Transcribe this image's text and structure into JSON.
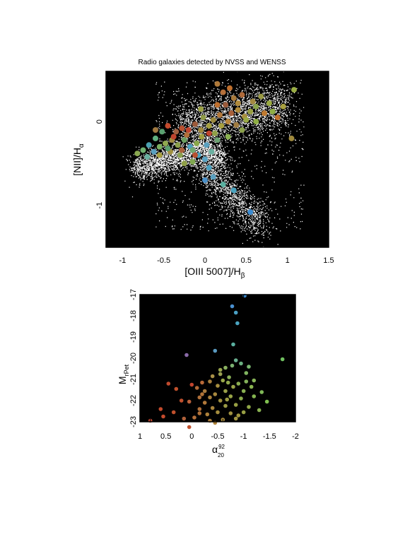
{
  "chart_data": [
    {
      "type": "scatter",
      "title": "Radio galaxies detected by NVSS and WENSS",
      "xlabel": {
        "open": "[OIII 5007]/H",
        "sub": "β"
      },
      "ylabel": {
        "open": "[NII]/H",
        "sub": "α"
      },
      "xlim": [
        -1.2,
        1.5
      ],
      "ylim": [
        -1.5,
        0.6
      ],
      "x_ticks": [
        -1,
        -0.5,
        0,
        0.5,
        1,
        1.5
      ],
      "y_ticks": [
        -1,
        0
      ],
      "background": "#000000",
      "cloud_color": "#ffffff",
      "series": [
        {
          "values": [
            [
              0.15,
              0.45,
              "#b07a3a"
            ],
            [
              0.22,
              0.35,
              "#b5703a"
            ],
            [
              0.35,
              0.28,
              "#a87a3c"
            ],
            [
              0.45,
              0.32,
              "#b06a3a"
            ],
            [
              0.58,
              0.24,
              "#a38a40"
            ],
            [
              0.68,
              0.3,
              "#9a9a44"
            ],
            [
              0.78,
              0.22,
              "#9aaa40"
            ],
            [
              0.82,
              0.12,
              "#8fae44"
            ],
            [
              0.88,
              0.05,
              "#c0702e"
            ],
            [
              0.72,
              0.1,
              "#c07a30"
            ],
            [
              0.62,
              0.18,
              "#8aa44a"
            ],
            [
              0.55,
              0.12,
              "#99a040"
            ],
            [
              0.48,
              0.06,
              "#a8903e"
            ],
            [
              0.4,
              0.14,
              "#b08a3a"
            ],
            [
              0.32,
              0.1,
              "#a8603a"
            ],
            [
              0.25,
              0.2,
              "#9a5a3a"
            ],
            [
              0.18,
              0.08,
              "#b4783a"
            ],
            [
              0.1,
              0.02,
              "#9c8a3e"
            ],
            [
              0.05,
              -0.05,
              "#a6a040"
            ],
            [
              -0.02,
              0.05,
              "#8f9a48"
            ],
            [
              -0.12,
              -0.03,
              "#9c5a3a"
            ],
            [
              -0.2,
              -0.1,
              "#c0442e"
            ],
            [
              -0.28,
              -0.08,
              "#b85030"
            ],
            [
              -0.35,
              -0.12,
              "#a06040"
            ],
            [
              -0.45,
              -0.05,
              "#c44a2c"
            ],
            [
              -0.52,
              -0.12,
              "#5aa070"
            ],
            [
              -0.6,
              -0.2,
              "#60b080"
            ],
            [
              -0.68,
              -0.28,
              "#4aa0b0"
            ],
            [
              -0.75,
              -0.34,
              "#70b070"
            ],
            [
              -0.62,
              -0.36,
              "#5aa0c0"
            ],
            [
              -0.55,
              -0.3,
              "#7ab060"
            ],
            [
              -0.48,
              -0.26,
              "#90a850"
            ],
            [
              -0.4,
              -0.22,
              "#a08c40"
            ],
            [
              -0.33,
              -0.28,
              "#8aa04a"
            ],
            [
              -0.25,
              -0.22,
              "#6aa060"
            ],
            [
              -0.18,
              -0.3,
              "#4aa0c0"
            ],
            [
              -0.1,
              -0.26,
              "#8aa84a"
            ],
            [
              -0.04,
              -0.18,
              "#a0a040"
            ],
            [
              0.02,
              -0.28,
              "#5aa0c0"
            ],
            [
              0.08,
              -0.36,
              "#6ab0a0"
            ],
            [
              0.0,
              -0.45,
              "#5aa4c4"
            ],
            [
              -0.08,
              -0.4,
              "#4aa0c0"
            ],
            [
              -0.15,
              -0.34,
              "#70a870"
            ],
            [
              -0.3,
              -0.4,
              "#8aa050"
            ],
            [
              -0.42,
              -0.36,
              "#a09040"
            ],
            [
              -0.38,
              -0.18,
              "#c0442e"
            ],
            [
              -0.22,
              -0.16,
              "#b0703a"
            ],
            [
              -0.05,
              -0.1,
              "#a0883e"
            ],
            [
              0.12,
              -0.14,
              "#8fa048"
            ],
            [
              0.2,
              -0.05,
              "#a8a040"
            ],
            [
              0.28,
              0.0,
              "#b8843a"
            ],
            [
              0.38,
              -0.04,
              "#a07c40"
            ],
            [
              0.5,
              0.02,
              "#9aaa44"
            ],
            [
              0.15,
              -0.22,
              "#6aa070"
            ],
            [
              0.28,
              -0.18,
              "#8ab050"
            ],
            [
              0.05,
              -0.55,
              "#4aa0c0"
            ],
            [
              0.1,
              -0.66,
              "#5aa0c0"
            ],
            [
              0.22,
              -0.75,
              "#5ab0a0"
            ],
            [
              0.35,
              -0.82,
              "#4aa4c0"
            ],
            [
              0.55,
              -1.08,
              "#3a8ad0"
            ],
            [
              0.0,
              -0.7,
              "#4a90c8"
            ],
            [
              -0.15,
              -0.48,
              "#80a850"
            ],
            [
              -0.25,
              -0.5,
              "#90a048"
            ],
            [
              -0.55,
              -0.4,
              "#a8a040"
            ],
            [
              -0.7,
              -0.42,
              "#6ab0a0"
            ],
            [
              1.08,
              0.38,
              "#9aae44"
            ],
            [
              1.05,
              -0.2,
              "#a08a3c"
            ],
            [
              0.95,
              0.18,
              "#a8a040"
            ],
            [
              0.15,
              0.2,
              "#c0702e"
            ],
            [
              -0.05,
              0.15,
              "#9aa044"
            ],
            [
              0.4,
              0.22,
              "#b08a3a"
            ],
            [
              0.62,
              0.0,
              "#8fae44"
            ],
            [
              -0.6,
              -0.1,
              "#a07840"
            ],
            [
              -0.82,
              -0.38,
              "#8aa850"
            ],
            [
              0.3,
              0.4,
              "#c0702e"
            ],
            [
              -0.28,
              -0.34,
              "#a8603a"
            ],
            [
              -0.12,
              -0.4,
              "#b85030"
            ],
            [
              0.45,
              -0.1,
              "#8aa04a"
            ],
            [
              0.05,
              -0.14,
              "#c0442e"
            ],
            [
              -0.45,
              -0.32,
              "#5aa070"
            ]
          ]
        }
      ]
    },
    {
      "type": "scatter",
      "xlabel": {
        "open": "α",
        "sup": "92",
        "sub": "20"
      },
      "ylabel": {
        "open": "M",
        "sub": "rPet"
      },
      "xlim": [
        1,
        -2
      ],
      "ylim": [
        -23,
        -17
      ],
      "x_ticks": [
        1,
        0.5,
        0,
        -0.5,
        -1,
        -1.5,
        -2
      ],
      "x_tick_labels": [
        "1",
        "0.5",
        "0",
        "-0.5",
        "-1",
        "-1.5",
        "-2"
      ],
      "y_ticks": [
        -23,
        -22,
        -21,
        -20,
        -19,
        -18,
        -17
      ],
      "y_tick_labels": [
        "-23",
        "-22",
        "-21",
        "-20",
        "-19",
        "-18",
        "-17"
      ],
      "background": "#000000",
      "series": [
        {
          "values": [
            [
              -1.02,
              -17.05,
              "#3a8ad0"
            ],
            [
              -0.78,
              -17.55,
              "#4a90d0"
            ],
            [
              -0.85,
              -17.85,
              "#4aa0c4"
            ],
            [
              -0.88,
              -18.35,
              "#4aa4c0"
            ],
            [
              -0.8,
              -19.35,
              "#5ab0a0"
            ],
            [
              -0.45,
              -19.65,
              "#5a9ac0"
            ],
            [
              -1.75,
              -20.05,
              "#70c060"
            ],
            [
              0.1,
              -19.85,
              "#8a6aa8"
            ],
            [
              -0.85,
              -20.1,
              "#6ab090"
            ],
            [
              -0.78,
              -20.35,
              "#7ab070"
            ],
            [
              -0.65,
              -20.45,
              "#8ab060"
            ],
            [
              -0.95,
              -20.25,
              "#6ab080"
            ],
            [
              -1.1,
              -20.4,
              "#7ab870"
            ],
            [
              -0.55,
              -20.75,
              "#9aa050"
            ],
            [
              -0.4,
              -20.85,
              "#a89048"
            ],
            [
              -1.05,
              -20.7,
              "#80b460"
            ],
            [
              -0.72,
              -20.9,
              "#8ab058"
            ],
            [
              -0.6,
              -21.05,
              "#9aa84a"
            ],
            [
              -0.35,
              -21.1,
              "#a8803e"
            ],
            [
              -0.2,
              -21.15,
              "#b86a38"
            ],
            [
              -1.2,
              -21.05,
              "#88b458"
            ],
            [
              -0.9,
              -21.2,
              "#8aac50"
            ],
            [
              -0.8,
              -21.35,
              "#9aa448"
            ],
            [
              -0.5,
              -21.3,
              "#a89040"
            ],
            [
              0.0,
              -21.25,
              "#c0442e"
            ],
            [
              0.3,
              -21.45,
              "#c0502c"
            ],
            [
              -0.1,
              -21.4,
              "#b06a38"
            ],
            [
              -0.25,
              -21.55,
              "#a87a3c"
            ],
            [
              -0.65,
              -21.55,
              "#9aa048"
            ],
            [
              -1.0,
              -21.55,
              "#88b050"
            ],
            [
              -1.35,
              -21.6,
              "#80b858"
            ],
            [
              -1.15,
              -21.35,
              "#8ab450"
            ],
            [
              -0.45,
              -21.7,
              "#a8883e"
            ],
            [
              -0.15,
              -21.85,
              "#b0703a"
            ],
            [
              -0.35,
              -21.85,
              "#a8803c"
            ],
            [
              -0.75,
              -21.8,
              "#98a448"
            ],
            [
              -0.95,
              -21.9,
              "#8aac4c"
            ],
            [
              -1.45,
              -22.05,
              "#80c050"
            ],
            [
              -0.55,
              -22.0,
              "#a0903e"
            ],
            [
              -0.25,
              -22.1,
              "#b0783a"
            ],
            [
              0.05,
              -22.05,
              "#b8603a"
            ],
            [
              -0.65,
              -22.25,
              "#9a9a44"
            ],
            [
              -0.85,
              -22.2,
              "#98a044"
            ],
            [
              -1.1,
              -22.3,
              "#90a848"
            ],
            [
              -0.4,
              -22.35,
              "#a8843c"
            ],
            [
              -0.15,
              -22.4,
              "#b0703a"
            ],
            [
              -0.5,
              -22.55,
              "#a48c3e"
            ],
            [
              -0.75,
              -22.6,
              "#a09040"
            ],
            [
              -1.0,
              -22.55,
              "#98a044"
            ],
            [
              -0.3,
              -22.65,
              "#ac803a"
            ],
            [
              0.35,
              -22.55,
              "#c0502c"
            ],
            [
              0.55,
              -22.75,
              "#c44a2c"
            ],
            [
              0.8,
              -22.95,
              "#c0442e"
            ],
            [
              0.15,
              -22.85,
              "#b0603a"
            ],
            [
              -0.05,
              -22.8,
              "#b4703a"
            ],
            [
              -0.6,
              -22.9,
              "#a88a3c"
            ],
            [
              -0.45,
              -23.05,
              "#b0843a"
            ],
            [
              -0.85,
              -22.85,
              "#a09440"
            ],
            [
              0.2,
              -22.0,
              "#c0502e"
            ],
            [
              0.45,
              -21.2,
              "#c04a2e"
            ],
            [
              -1.3,
              -22.45,
              "#88b050"
            ],
            [
              -1.2,
              -21.8,
              "#84b450"
            ],
            [
              -0.7,
              -21.15,
              "#90a84c"
            ],
            [
              -0.55,
              -20.55,
              "#98a44c"
            ],
            [
              -0.2,
              -21.7,
              "#b27438"
            ],
            [
              -0.9,
              -22.7,
              "#a0943e"
            ],
            [
              -0.35,
              -22.95,
              "#ae7e3a"
            ],
            [
              0.05,
              -23.25,
              "#c0502c"
            ],
            [
              -0.68,
              -21.95,
              "#9c9c44"
            ],
            [
              -1.05,
              -21.1,
              "#84b25a"
            ],
            [
              0.6,
              -22.4,
              "#c44a2c"
            ],
            [
              -0.15,
              -22.6,
              "#b07038"
            ]
          ]
        }
      ]
    }
  ]
}
